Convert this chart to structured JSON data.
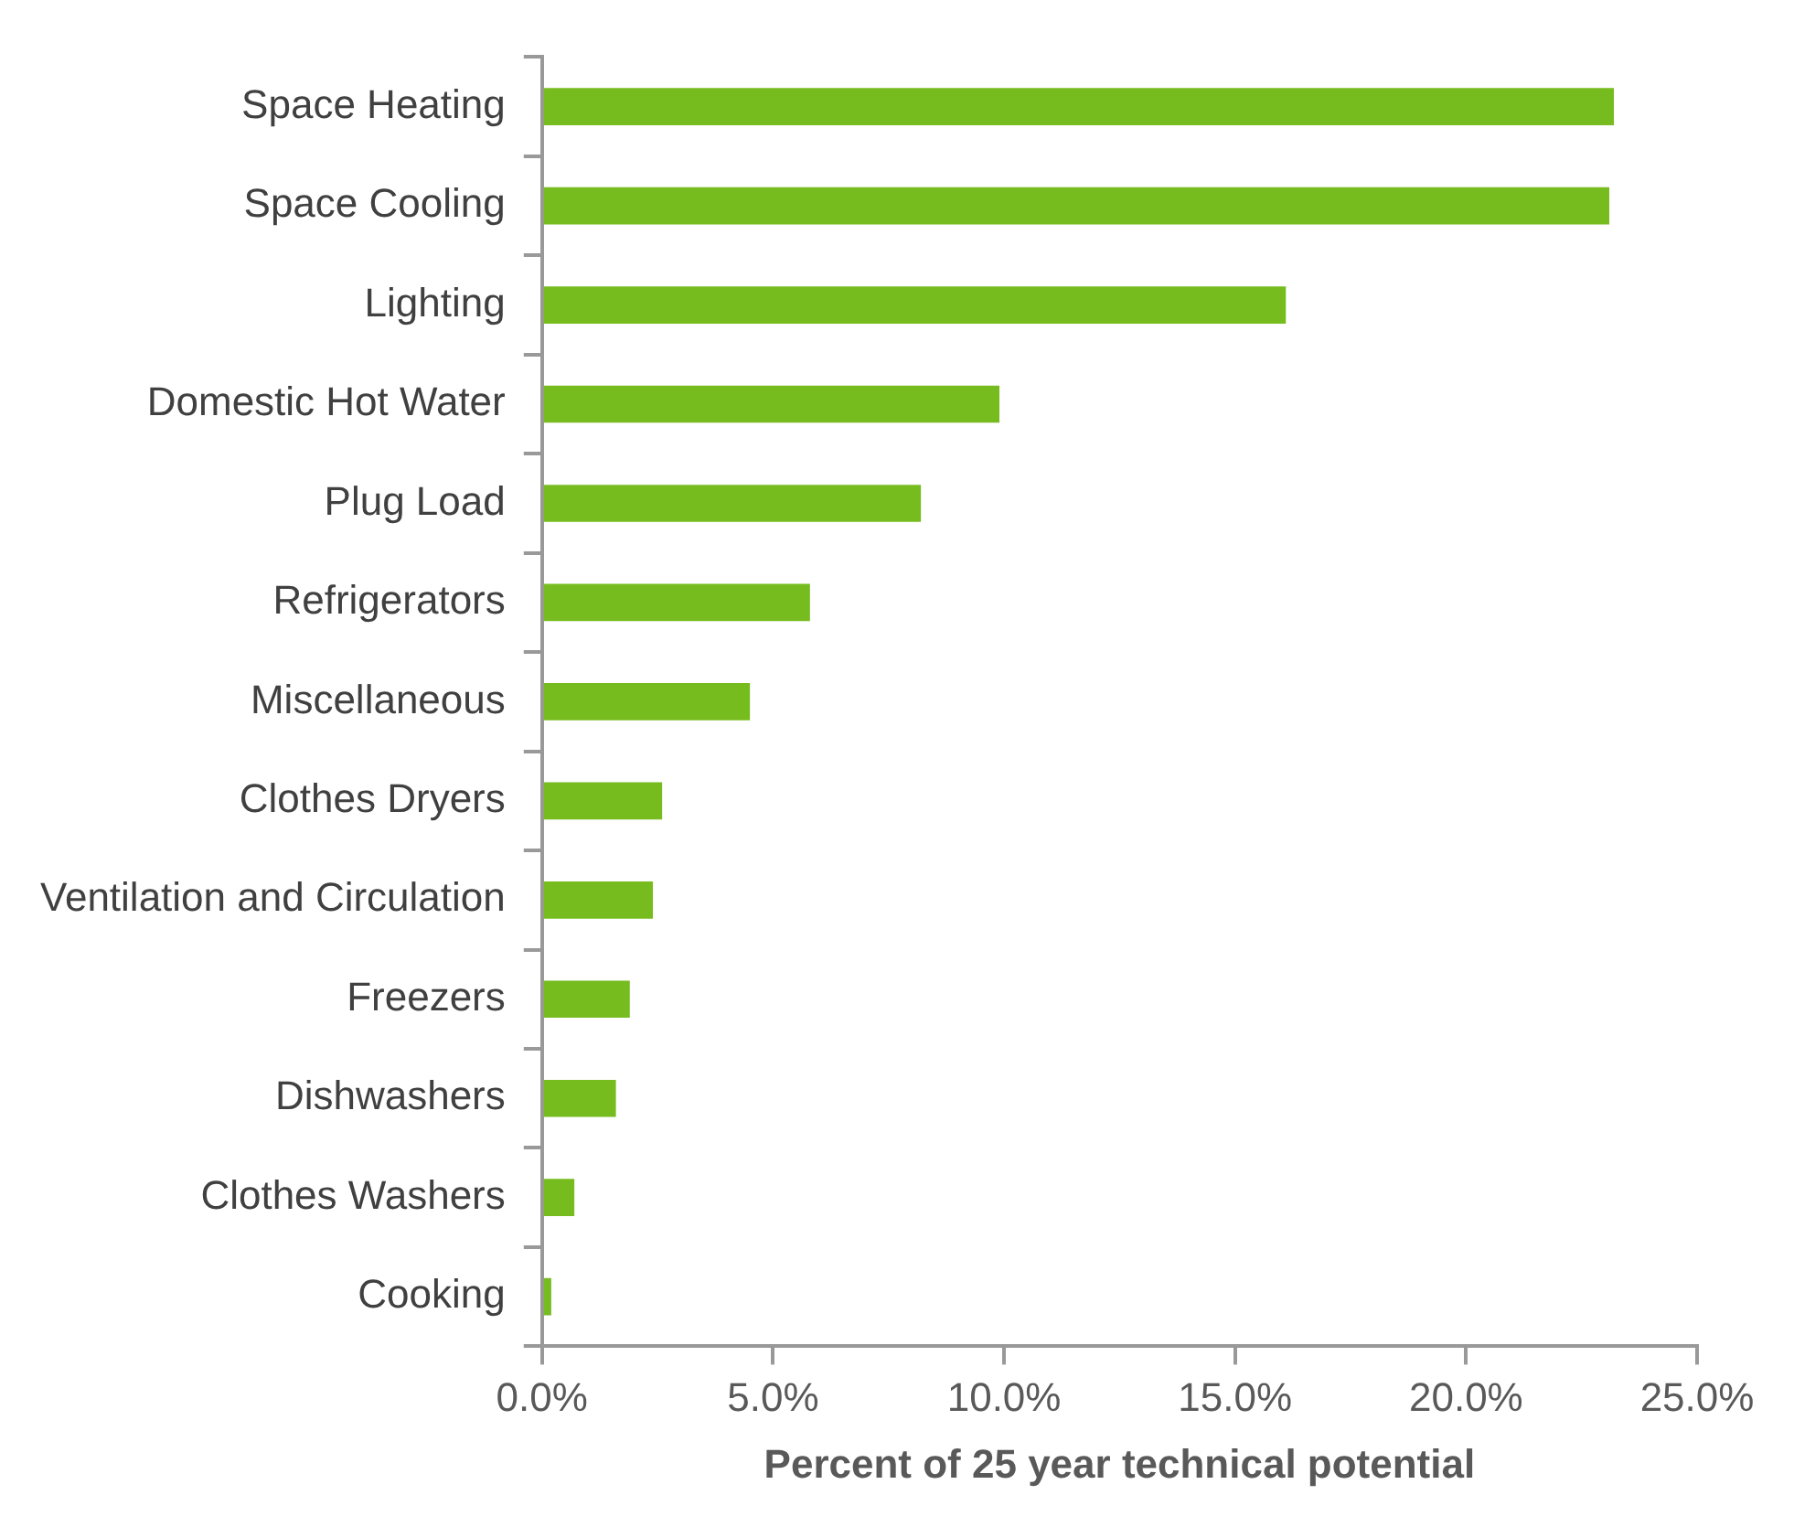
{
  "chart_data": {
    "type": "bar",
    "orientation": "horizontal",
    "xlabel": "Percent of 25 year technical potential",
    "categories": [
      "Space Heating",
      "Space Cooling",
      "Lighting",
      "Domestic Hot Water",
      "Plug Load",
      "Refrigerators",
      "Miscellaneous",
      "Clothes Dryers",
      "Ventilation and Circulation",
      "Freezers",
      "Dishwashers",
      "Clothes Washers",
      "Cooking"
    ],
    "values": [
      23.2,
      23.1,
      16.1,
      9.9,
      8.2,
      5.8,
      4.5,
      2.6,
      2.4,
      1.9,
      1.6,
      0.7,
      0.2
    ],
    "color": "#77bc1f",
    "xlim": [
      0,
      25
    ],
    "xticks": [
      {
        "value": 0,
        "label": "0.0%"
      },
      {
        "value": 5,
        "label": "5.0%"
      },
      {
        "value": 10,
        "label": "10.0%"
      },
      {
        "value": 15,
        "label": "15.0%"
      },
      {
        "value": 20,
        "label": "20.0%"
      },
      {
        "value": 25,
        "label": "25.0%"
      }
    ],
    "grid": false,
    "legend": false
  }
}
